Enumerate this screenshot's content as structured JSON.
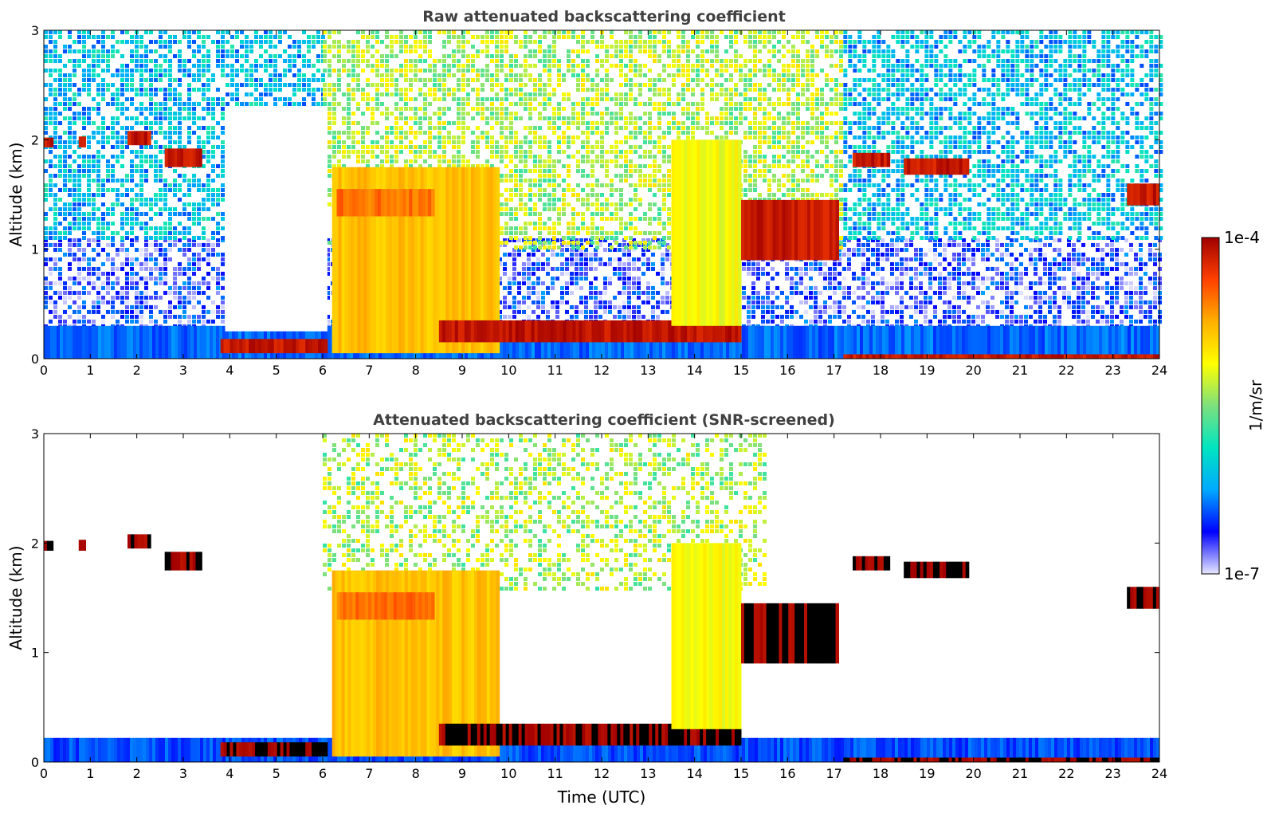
{
  "chart_data": [
    {
      "type": "heatmap",
      "title": "Raw attenuated backscattering coefficient",
      "xlabel": "",
      "ylabel": "Altitude (km)",
      "xlim": [
        0,
        24
      ],
      "ylim": [
        0,
        3
      ],
      "xticks": [
        "0",
        "1",
        "2",
        "3",
        "4",
        "5",
        "6",
        "7",
        "8",
        "9",
        "10",
        "11",
        "12",
        "13",
        "14",
        "15",
        "16",
        "17",
        "18",
        "19",
        "20",
        "21",
        "22",
        "23",
        "24"
      ],
      "yticks": [
        "0",
        "1",
        "2",
        "3"
      ],
      "layers": [
        {
          "label": "noise-low",
          "t0": 0,
          "t1": 24,
          "h0": 0.3,
          "h1": 1.1,
          "v": 0.12,
          "noise": true
        },
        {
          "label": "noise-mid",
          "t0": 0,
          "t1": 6,
          "h0": 1.1,
          "h1": 3.0,
          "v": 0.3,
          "noise": true
        },
        {
          "label": "noise-day",
          "t0": 6,
          "t1": 17.2,
          "h0": 1.0,
          "h1": 3.0,
          "v": 0.55,
          "noise": true
        },
        {
          "label": "noise-evening",
          "t0": 17.2,
          "t1": 24,
          "h0": 1.1,
          "h1": 3.0,
          "v": 0.3,
          "noise": true
        },
        {
          "label": "surface-band",
          "t0": 0,
          "t1": 24,
          "h0": 0.0,
          "h1": 0.3,
          "v": 0.2
        },
        {
          "label": "clear-gap",
          "t0": 3.9,
          "t1": 6.1,
          "h0": 0.25,
          "h1": 2.3,
          "v": -1
        },
        {
          "label": "boundary-layer-night",
          "t0": 3.8,
          "t1": 6.1,
          "h0": 0.05,
          "h1": 0.18,
          "v": 0.95
        },
        {
          "label": "daytime-aerosol",
          "t0": 6.2,
          "t1": 9.8,
          "h0": 0.05,
          "h1": 1.75,
          "v": 0.72
        },
        {
          "label": "aerosol-top",
          "t0": 6.3,
          "t1": 8.4,
          "h0": 1.3,
          "h1": 1.55,
          "v": 0.82
        },
        {
          "label": "boundary-layer-day",
          "t0": 8.5,
          "t1": 15.0,
          "h0": 0.15,
          "h1": 0.35,
          "v": 0.96
        },
        {
          "label": "midday-plumes",
          "t0": 13.5,
          "t1": 15.0,
          "h0": 0.3,
          "h1": 2.0,
          "v": 0.62
        },
        {
          "label": "cloud-afternoon",
          "t0": 15.0,
          "t1": 17.1,
          "h0": 0.9,
          "h1": 1.45,
          "v": 0.95
        },
        {
          "label": "cloud-night-1",
          "t0": 0,
          "t1": 0.2,
          "h0": 1.93,
          "h1": 2.02,
          "v": 0.95
        },
        {
          "label": "cloud-night-2",
          "t0": 0.75,
          "t1": 0.9,
          "h0": 1.93,
          "h1": 2.03,
          "v": 0.95
        },
        {
          "label": "cloud-night-3",
          "t0": 1.8,
          "t1": 2.3,
          "h0": 1.95,
          "h1": 2.08,
          "v": 0.95
        },
        {
          "label": "cloud-night-4",
          "t0": 2.6,
          "t1": 3.4,
          "h0": 1.75,
          "h1": 1.92,
          "v": 0.95
        },
        {
          "label": "cloud-evening-1",
          "t0": 17.4,
          "t1": 18.2,
          "h0": 1.75,
          "h1": 1.88,
          "v": 0.95
        },
        {
          "label": "cloud-evening-2",
          "t0": 18.5,
          "t1": 19.9,
          "h0": 1.68,
          "h1": 1.83,
          "v": 0.95
        },
        {
          "label": "cloud-late",
          "t0": 23.3,
          "t1": 24,
          "h0": 1.4,
          "h1": 1.6,
          "v": 0.95
        },
        {
          "label": "surface-evening",
          "t0": 17.2,
          "t1": 24,
          "h0": 0.0,
          "h1": 0.04,
          "v": 0.95
        }
      ]
    },
    {
      "type": "heatmap",
      "title": "Attenuated backscattering coefficient (SNR-screened)",
      "xlabel": "Time (UTC)",
      "ylabel": "Altitude (km)",
      "xlim": [
        0,
        24
      ],
      "ylim": [
        0,
        3
      ],
      "xticks": [
        "0",
        "1",
        "2",
        "3",
        "4",
        "5",
        "6",
        "7",
        "8",
        "9",
        "10",
        "11",
        "12",
        "13",
        "14",
        "15",
        "16",
        "17",
        "18",
        "19",
        "20",
        "21",
        "22",
        "23",
        "24"
      ],
      "yticks": [
        "0",
        "1",
        "2",
        "3"
      ],
      "layers": [
        {
          "label": "noise-day",
          "t0": 6,
          "t1": 15.5,
          "h0": 1.6,
          "h1": 3.0,
          "v": 0.55,
          "noise": true,
          "sparse": true
        },
        {
          "label": "surface-band",
          "t0": 0,
          "t1": 24,
          "h0": 0.0,
          "h1": 0.22,
          "v": 0.18
        },
        {
          "label": "boundary-layer-night",
          "t0": 3.8,
          "t1": 6.1,
          "h0": 0.05,
          "h1": 0.18,
          "v": 1.0
        },
        {
          "label": "daytime-aerosol",
          "t0": 6.2,
          "t1": 9.8,
          "h0": 0.05,
          "h1": 1.75,
          "v": 0.72
        },
        {
          "label": "aerosol-top",
          "t0": 6.3,
          "t1": 8.4,
          "h0": 1.3,
          "h1": 1.55,
          "v": 0.82
        },
        {
          "label": "boundary-layer-day",
          "t0": 8.5,
          "t1": 15.0,
          "h0": 0.15,
          "h1": 0.35,
          "v": 1.0
        },
        {
          "label": "midday-plumes",
          "t0": 13.5,
          "t1": 15.0,
          "h0": 0.3,
          "h1": 2.0,
          "v": 0.62
        },
        {
          "label": "cloud-afternoon",
          "t0": 15.0,
          "t1": 17.1,
          "h0": 0.9,
          "h1": 1.45,
          "v": 1.0
        },
        {
          "label": "cloud-night-1",
          "t0": 0,
          "t1": 0.2,
          "h0": 1.93,
          "h1": 2.02,
          "v": 1.0
        },
        {
          "label": "cloud-night-2",
          "t0": 0.75,
          "t1": 0.9,
          "h0": 1.93,
          "h1": 2.03,
          "v": 1.0
        },
        {
          "label": "cloud-night-3",
          "t0": 1.8,
          "t1": 2.3,
          "h0": 1.95,
          "h1": 2.08,
          "v": 1.0
        },
        {
          "label": "cloud-night-4",
          "t0": 2.6,
          "t1": 3.4,
          "h0": 1.75,
          "h1": 1.92,
          "v": 1.0
        },
        {
          "label": "cloud-evening-1",
          "t0": 17.4,
          "t1": 18.2,
          "h0": 1.75,
          "h1": 1.88,
          "v": 1.0
        },
        {
          "label": "cloud-evening-2",
          "t0": 18.5,
          "t1": 19.9,
          "h0": 1.68,
          "h1": 1.83,
          "v": 1.0
        },
        {
          "label": "cloud-late",
          "t0": 23.3,
          "t1": 24,
          "h0": 1.4,
          "h1": 1.6,
          "v": 1.0
        },
        {
          "label": "surface-evening",
          "t0": 17.2,
          "t1": 24,
          "h0": 0.0,
          "h1": 0.04,
          "v": 1.0
        }
      ]
    }
  ],
  "colorbar": {
    "label": "1/m/sr",
    "min_label": "1e-7",
    "max_label": "1e-4",
    "colormap": [
      "#e8e8ff",
      "#0000ff",
      "#00aaff",
      "#00e5c0",
      "#7de07d",
      "#ffff00",
      "#ffb000",
      "#ff4000",
      "#a00000"
    ],
    "saturated_color": "#000000"
  }
}
